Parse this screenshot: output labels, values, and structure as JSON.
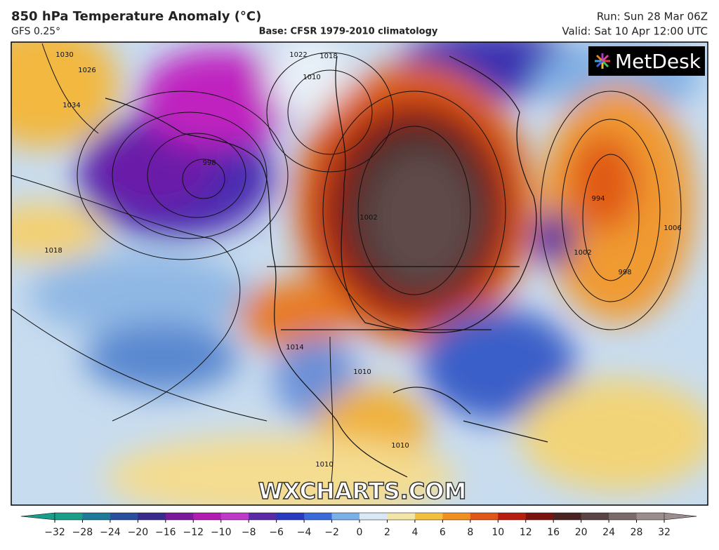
{
  "header": {
    "title": "850 hPa Temperature Anomaly (°C)",
    "model": "GFS 0.25°",
    "base": "Base: CFSR 1979-2010 climatology",
    "run": "Run: Sun 28 Mar 06Z",
    "valid": "Valid: Sat 10 Apr 12:00 UTC"
  },
  "logo": "MetDesk",
  "watermark": "WXCHARTS.COM",
  "isobar_labels": [
    "1030",
    "1026",
    "1034",
    "1022",
    "1018",
    "1010",
    "998",
    "1018",
    "994",
    "1006",
    "1002",
    "998",
    "1002",
    "1010",
    "1014",
    "1010",
    "1010"
  ],
  "colorbar": {
    "ticks": [
      {
        "value": -32,
        "label": "−32"
      },
      {
        "value": -28,
        "label": "−28"
      },
      {
        "value": -24,
        "label": "−24"
      },
      {
        "value": -20,
        "label": "−20"
      },
      {
        "value": -16,
        "label": "−16"
      },
      {
        "value": -12,
        "label": "−12"
      },
      {
        "value": -10,
        "label": "−10"
      },
      {
        "value": -8,
        "label": "−8"
      },
      {
        "value": -6,
        "label": "−6"
      },
      {
        "value": -4,
        "label": "−4"
      },
      {
        "value": -2,
        "label": "−2"
      },
      0,
      2,
      4,
      6,
      8,
      10,
      12,
      16,
      20,
      24,
      28,
      32
    ],
    "colors": [
      "#1a9e8a",
      "#1f7a9a",
      "#2a4f9c",
      "#3a2a8c",
      "#7a1a9a",
      "#b01cb0",
      "#c03ac8",
      "#5a2aa8",
      "#2a3ac0",
      "#3a6ad8",
      "#7ab0e8",
      "#d8e8f4",
      "#f4e6a8",
      "#f4c040",
      "#f09020",
      "#e05818",
      "#b81e10",
      "#7a1410",
      "#4a2420",
      "#5a4444",
      "#7a6a6a",
      "#9a8e8e"
    ]
  }
}
